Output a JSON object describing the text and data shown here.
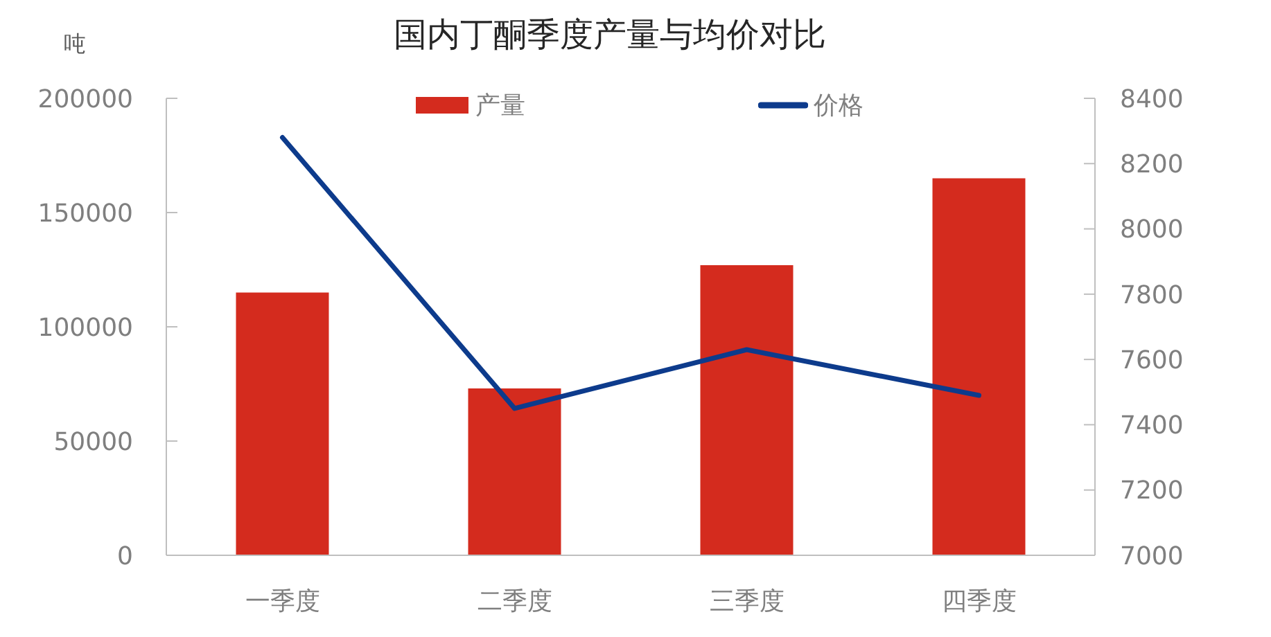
{
  "chart_data": {
    "type": "bar",
    "title": "国内丁酮季度产量与均价对比",
    "ylabel": "吨",
    "categories": [
      "一季度",
      "二季度",
      "三季度",
      "四季度"
    ],
    "series": [
      {
        "name": "产量",
        "color": "#d42b1e",
        "values": [
          115000,
          73000,
          127000,
          165000
        ]
      },
      {
        "name": "价格",
        "type": "line",
        "axis": "y2",
        "color": "#0d3b8c",
        "values": [
          8280,
          7450,
          7630,
          7490
        ]
      }
    ],
    "ylim": [
      0,
      200000
    ],
    "yticks": [
      0,
      50000,
      100000,
      150000,
      200000
    ],
    "y2lim": [
      7000,
      8400
    ],
    "y2ticks": [
      7000,
      7200,
      7400,
      7600,
      7800,
      8000,
      8200,
      8400
    ],
    "grid": false,
    "legend": "top"
  }
}
